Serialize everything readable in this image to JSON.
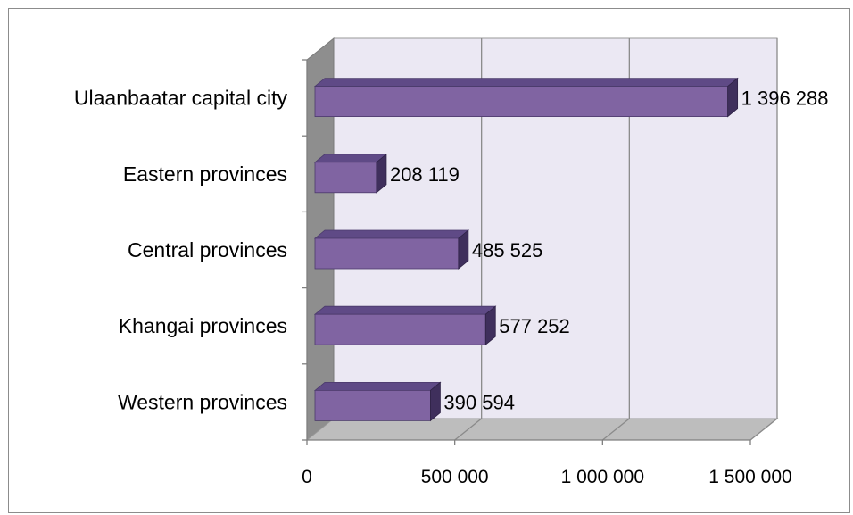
{
  "chart_data": {
    "type": "bar",
    "orientation": "horizontal",
    "style": "3d",
    "categories": [
      "Western provinces",
      "Khangai provinces",
      "Central provinces",
      "Eastern provinces",
      "Ulaanbaatar capital city"
    ],
    "values": [
      390594,
      577252,
      485525,
      208119,
      1396288
    ],
    "value_labels": [
      "390 594",
      "577 252",
      "485 525",
      "208 119",
      "1 396 288"
    ],
    "x_ticks": [
      0,
      500000,
      1000000,
      1500000
    ],
    "x_tick_labels": [
      "0",
      "500 000",
      "1 000 000",
      "1 500 000"
    ],
    "xlim": [
      0,
      1500000
    ],
    "grid": "vertical",
    "legend": "none",
    "colors": {
      "bar_front": "#8064a2",
      "bar_top": "#5f4a86",
      "bar_side": "#3f2f5c",
      "back_wall": "#ebe8f3",
      "side_wall": "#8e8e8e",
      "floor": "#bdbdbd",
      "gridline": "#8a8a8a"
    }
  }
}
